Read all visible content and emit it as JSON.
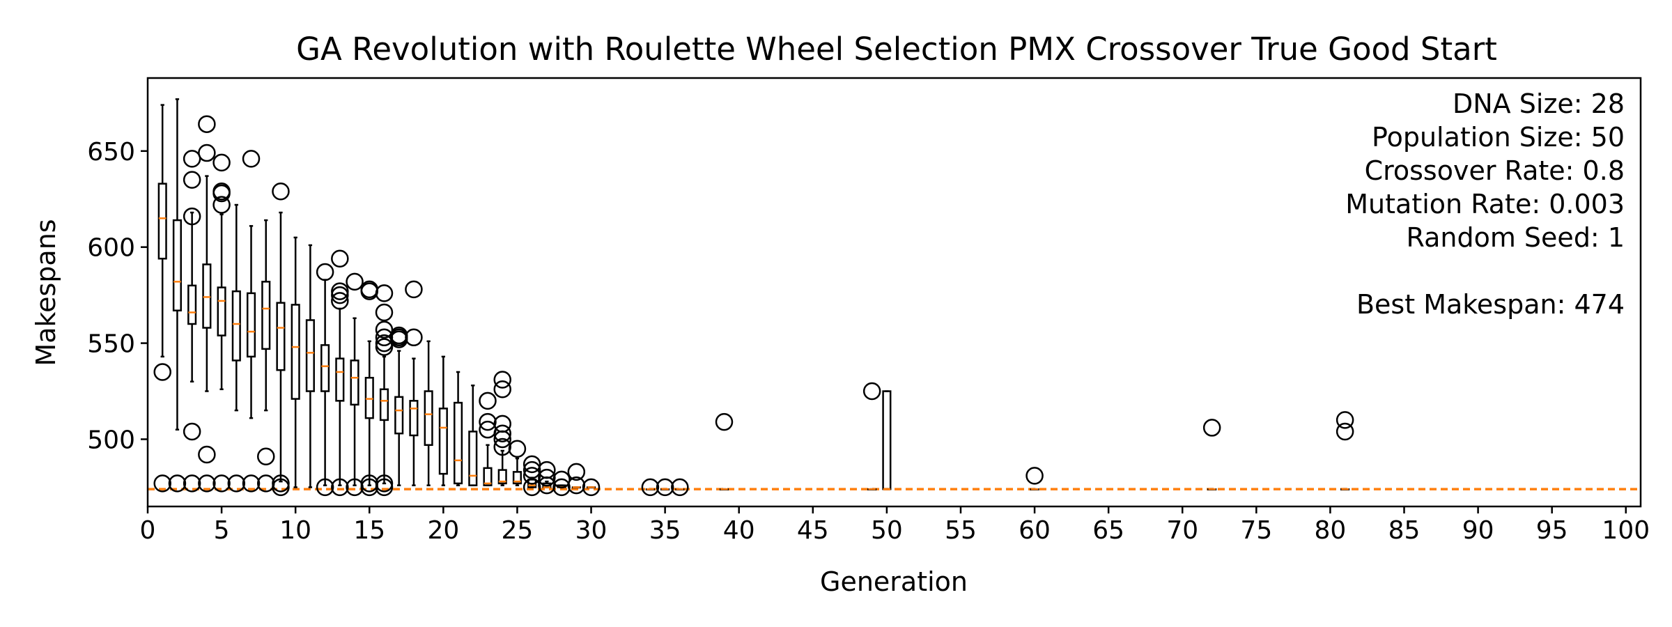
{
  "chart_data": {
    "type": "box",
    "title": "GA Revolution with Roulette Wheel Selection PMX Crossover True Good Start",
    "xlabel": "Generation",
    "ylabel": "Makespans",
    "xlim": [
      0,
      101
    ],
    "ylim": [
      465,
      688
    ],
    "xticks": [
      0,
      5,
      10,
      15,
      20,
      25,
      30,
      35,
      40,
      45,
      50,
      55,
      60,
      65,
      70,
      75,
      80,
      85,
      90,
      95,
      100
    ],
    "yticks": [
      500,
      550,
      600,
      650
    ],
    "info_lines": [
      "DNA Size: 28",
      "Population Size: 50",
      "Crossover Rate: 0.8",
      "Mutation Rate: 0.003",
      "Random Seed: 1",
      "",
      "Best Makespan: 474"
    ],
    "best_line": {
      "value": 474,
      "style": "dashed",
      "color": "#ff7f0e"
    },
    "colors": {
      "median": "#ff7f0e",
      "box": "#000000"
    },
    "boxes": [
      {
        "x": 1,
        "q1": 594,
        "median": 615,
        "q3": 633,
        "whislo": 543,
        "whishi": 674,
        "fliers": [
          535,
          477
        ]
      },
      {
        "x": 2,
        "q1": 567,
        "median": 582,
        "q3": 614,
        "whislo": 505,
        "whishi": 677,
        "fliers": [
          477
        ]
      },
      {
        "x": 3,
        "q1": 560,
        "median": 566,
        "q3": 580,
        "whislo": 530,
        "whishi": 618,
        "fliers": [
          646,
          635,
          616,
          504,
          477
        ]
      },
      {
        "x": 4,
        "q1": 558,
        "median": 574,
        "q3": 591,
        "whislo": 525,
        "whishi": 637,
        "fliers": [
          664,
          649,
          492,
          477
        ]
      },
      {
        "x": 5,
        "q1": 554,
        "median": 572,
        "q3": 579,
        "whislo": 526,
        "whishi": 617,
        "fliers": [
          644,
          629,
          628,
          622,
          477
        ]
      },
      {
        "x": 6,
        "q1": 541,
        "median": 560,
        "q3": 577,
        "whislo": 515,
        "whishi": 622,
        "fliers": [
          477
        ]
      },
      {
        "x": 7,
        "q1": 543,
        "median": 556,
        "q3": 576,
        "whislo": 511,
        "whishi": 611,
        "fliers": [
          646,
          477
        ]
      },
      {
        "x": 8,
        "q1": 547,
        "median": 568,
        "q3": 582,
        "whislo": 515,
        "whishi": 614,
        "fliers": [
          491,
          477
        ]
      },
      {
        "x": 9,
        "q1": 536,
        "median": 558,
        "q3": 571,
        "whislo": 478,
        "whishi": 618,
        "fliers": [
          629,
          477,
          475
        ]
      },
      {
        "x": 10,
        "q1": 521,
        "median": 548,
        "q3": 570,
        "whislo": 475,
        "whishi": 605,
        "fliers": []
      },
      {
        "x": 11,
        "q1": 525,
        "median": 545,
        "q3": 562,
        "whislo": 475,
        "whishi": 601,
        "fliers": []
      },
      {
        "x": 12,
        "q1": 525,
        "median": 538,
        "q3": 549,
        "whislo": 476,
        "whishi": 583,
        "fliers": [
          587,
          475
        ]
      },
      {
        "x": 13,
        "q1": 520,
        "median": 535,
        "q3": 542,
        "whislo": 476,
        "whishi": 568,
        "fliers": [
          594,
          577,
          575,
          572,
          475
        ]
      },
      {
        "x": 14,
        "q1": 518,
        "median": 532,
        "q3": 541,
        "whislo": 476,
        "whishi": 563,
        "fliers": [
          582,
          475
        ]
      },
      {
        "x": 15,
        "q1": 511,
        "median": 521,
        "q3": 532,
        "whislo": 476,
        "whishi": 551,
        "fliers": [
          578,
          577,
          477,
          475
        ]
      },
      {
        "x": 16,
        "q1": 510,
        "median": 520,
        "q3": 526,
        "whislo": 477,
        "whishi": 543,
        "fliers": [
          576,
          566,
          557,
          553,
          550,
          548,
          477,
          475
        ]
      },
      {
        "x": 17,
        "q1": 503,
        "median": 515,
        "q3": 522,
        "whislo": 476,
        "whishi": 546,
        "fliers": [
          554,
          553,
          552
        ]
      },
      {
        "x": 18,
        "q1": 502,
        "median": 516,
        "q3": 520,
        "whislo": 476,
        "whishi": 542,
        "fliers": [
          578,
          553
        ]
      },
      {
        "x": 19,
        "q1": 497,
        "median": 513,
        "q3": 525,
        "whislo": 476,
        "whishi": 551,
        "fliers": []
      },
      {
        "x": 20,
        "q1": 482,
        "median": 506,
        "q3": 516,
        "whislo": 476,
        "whishi": 543,
        "fliers": []
      },
      {
        "x": 21,
        "q1": 477,
        "median": 489,
        "q3": 519,
        "whislo": 476,
        "whishi": 535,
        "fliers": []
      },
      {
        "x": 22,
        "q1": 476,
        "median": 481,
        "q3": 504,
        "whislo": 476,
        "whishi": 528,
        "fliers": []
      },
      {
        "x": 23,
        "q1": 476,
        "median": 477,
        "q3": 485,
        "whislo": 476,
        "whishi": 497,
        "fliers": [
          520,
          509,
          505
        ]
      },
      {
        "x": 24,
        "q1": 477,
        "median": 478,
        "q3": 484,
        "whislo": 476,
        "whishi": 494,
        "fliers": [
          531,
          526,
          508,
          503,
          500,
          496
        ]
      },
      {
        "x": 25,
        "q1": 477,
        "median": 478,
        "q3": 483,
        "whislo": 476,
        "whishi": 490,
        "fliers": [
          495
        ]
      },
      {
        "x": 26,
        "q1": 475,
        "median": 476,
        "q3": 479,
        "whislo": 475,
        "whishi": 480,
        "fliers": [
          487,
          484,
          481,
          475
        ]
      },
      {
        "x": 27,
        "q1": 475,
        "median": 475,
        "q3": 477,
        "whislo": 475,
        "whishi": 478,
        "fliers": [
          484,
          480,
          476
        ]
      },
      {
        "x": 28,
        "q1": 475,
        "median": 475,
        "q3": 476,
        "whislo": 475,
        "whishi": 476,
        "fliers": [
          479,
          475
        ]
      },
      {
        "x": 29,
        "q1": 475,
        "median": 475,
        "q3": 475,
        "whislo": 475,
        "whishi": 475,
        "fliers": [
          483,
          476
        ]
      },
      {
        "x": 30,
        "q1": 475,
        "median": 475,
        "q3": 475,
        "whislo": 475,
        "whishi": 475,
        "fliers": [
          475
        ]
      },
      {
        "x": 34,
        "q1": 474,
        "median": 474,
        "q3": 474,
        "whislo": 474,
        "whishi": 474,
        "fliers": [
          475
        ]
      },
      {
        "x": 35,
        "q1": 474,
        "median": 474,
        "q3": 474,
        "whislo": 474,
        "whishi": 474,
        "fliers": [
          475
        ]
      },
      {
        "x": 36,
        "q1": 474,
        "median": 474,
        "q3": 474,
        "whislo": 474,
        "whishi": 474,
        "fliers": [
          475
        ]
      },
      {
        "x": 39,
        "q1": 474,
        "median": 474,
        "q3": 474,
        "whislo": 474,
        "whishi": 474,
        "fliers": [
          509
        ]
      },
      {
        "x": 49,
        "q1": 474,
        "median": 474,
        "q3": 474,
        "whislo": 474,
        "whishi": 474,
        "fliers": [
          525
        ]
      },
      {
        "x": 50,
        "q1": 474,
        "median": 474,
        "q3": 525,
        "whislo": 474,
        "whishi": 525,
        "fliers": []
      },
      {
        "x": 60,
        "q1": 474,
        "median": 474,
        "q3": 474,
        "whislo": 474,
        "whishi": 474,
        "fliers": [
          481
        ]
      },
      {
        "x": 72,
        "q1": 474,
        "median": 474,
        "q3": 474,
        "whislo": 474,
        "whishi": 474,
        "fliers": [
          506
        ]
      },
      {
        "x": 81,
        "q1": 474,
        "median": 474,
        "q3": 474,
        "whislo": 474,
        "whishi": 474,
        "fliers": [
          510,
          504
        ]
      }
    ]
  }
}
